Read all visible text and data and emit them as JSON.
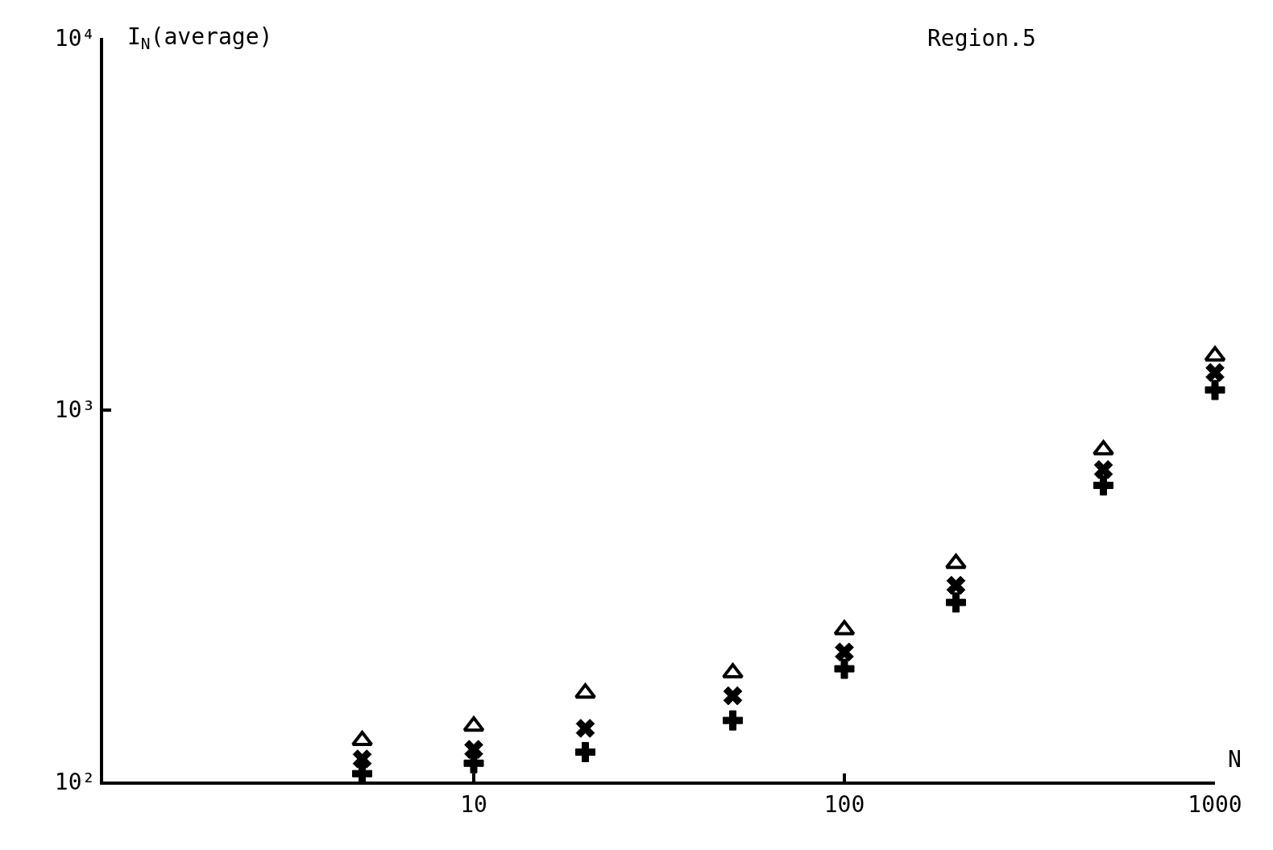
{
  "chart_data": {
    "type": "scatter",
    "log": "xy",
    "legend": false,
    "x": [
      5,
      10,
      20,
      50,
      100,
      200,
      500,
      1000
    ],
    "series": [
      {
        "color": "#000000",
        "marker": "triangle",
        "values": [
          129,
          141,
          173,
          196,
          256,
          386,
          780,
          1396
        ]
      },
      {
        "color": "#000000",
        "marker": "cross",
        "values": [
          115,
          122,
          139,
          170,
          223,
          337,
          690,
          1259
        ]
      },
      {
        "color": "#000000",
        "marker": "cross",
        "values": [
          105,
          112,
          120,
          146,
          201,
          303,
          626,
          1130
        ]
      }
    ],
    "xlim": [
      1,
      1000
    ],
    "ylim": [
      100,
      10000
    ],
    "xticks": [
      10,
      100,
      1000
    ],
    "yticks": [
      {
        "value": 100,
        "label": "10²"
      },
      {
        "value": 1000,
        "label": "10³"
      },
      {
        "value": 10000,
        "label": "10⁴"
      }
    ],
    "xlabel": "N",
    "ylabel": "I$_{N}$(average)",
    "annotations": [
      "Region.5"
    ]
  }
}
